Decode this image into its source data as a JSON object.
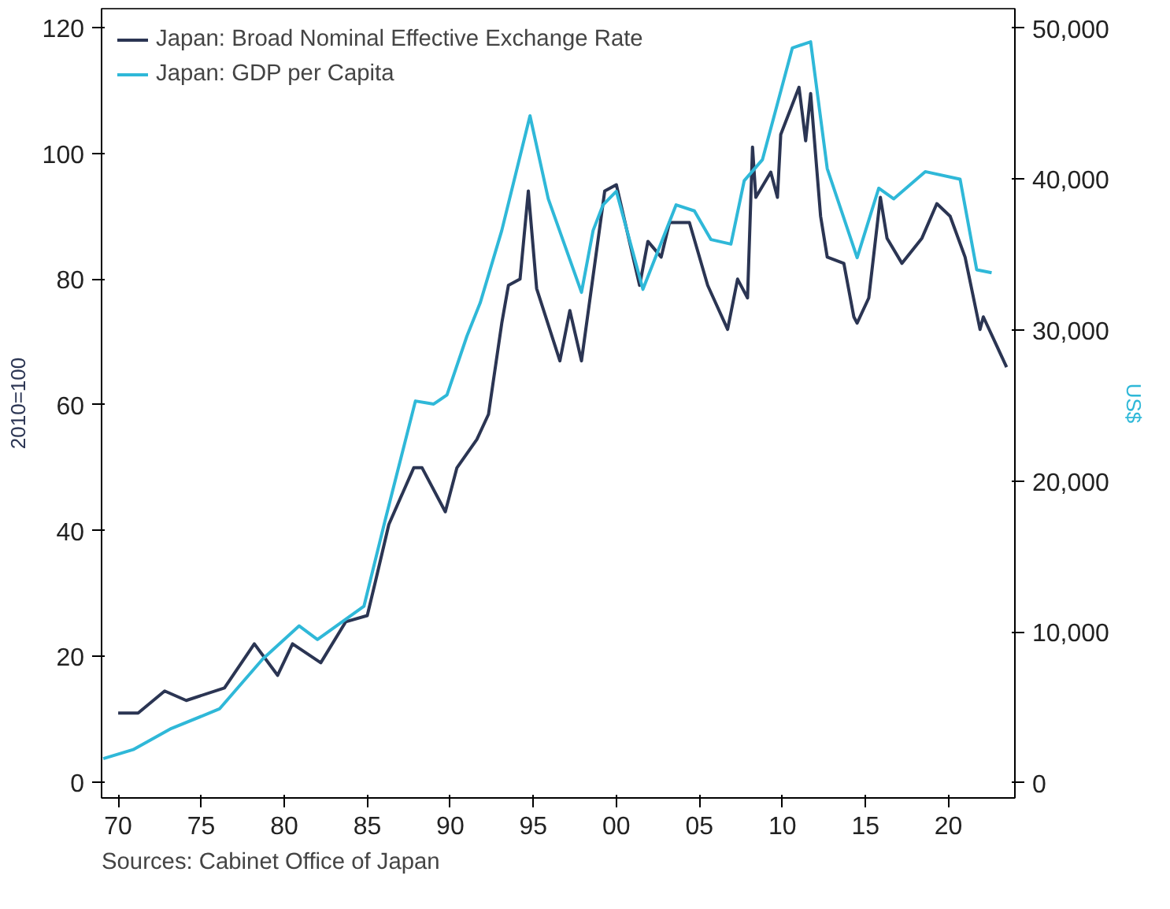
{
  "chart_data": {
    "type": "line",
    "ylabel": "2010=100",
    "y2label": "US$",
    "annotations": [
      "Sources: Cabinet Office of Japan"
    ],
    "legend": "top left",
    "grid": false,
    "xlim": [
      1969,
      2024
    ],
    "ylim": [
      -2.5,
      123
    ],
    "y2lim": [
      -1000,
      51300
    ],
    "xticks": [
      {
        "value": 1970,
        "label": "70"
      },
      {
        "value": 1975,
        "label": "75"
      },
      {
        "value": 1980,
        "label": "80"
      },
      {
        "value": 1985,
        "label": "85"
      },
      {
        "value": 1990,
        "label": "90"
      },
      {
        "value": 1995,
        "label": "95"
      },
      {
        "value": 2000,
        "label": "00"
      },
      {
        "value": 2005,
        "label": "05"
      },
      {
        "value": 2010,
        "label": "10"
      },
      {
        "value": 2015,
        "label": "15"
      },
      {
        "value": 2020,
        "label": "20"
      }
    ],
    "yticks": [
      0,
      20,
      40,
      60,
      80,
      100,
      120
    ],
    "y2ticks": [
      0,
      {
        "value": 10000,
        "label": "10,000"
      },
      {
        "value": 20000,
        "label": "20,000"
      },
      {
        "value": 30000,
        "label": "30,000"
      },
      {
        "value": 40000,
        "label": "40,000"
      },
      {
        "value": 50000,
        "label": "50,000"
      }
    ],
    "series": [
      {
        "name": "Japan: Broad Nominal Effective Exchange Rate",
        "color": "#2b3553",
        "x": [
          1970.0,
          1971.2,
          1972.8,
          1974.1,
          1976.4,
          1978.2,
          1979.6,
          1980.5,
          1982.2,
          1983.7,
          1985.0,
          1985.5,
          1986.3,
          1987.8,
          1988.3,
          1989.7,
          1990.4,
          1991.6,
          1992.3,
          1993.1,
          1993.5,
          1994.2,
          1994.7,
          1995.2,
          1996.6,
          1997.2,
          1997.9,
          1999.3,
          2000.0,
          2001.4,
          2001.9,
          2002.7,
          2003.2,
          2004.4,
          2005.5,
          2006.7,
          2007.3,
          2007.9,
          2008.2,
          2008.4,
          2009.3,
          2009.7,
          2009.9,
          2011.0,
          2011.4,
          2011.7,
          2012.3,
          2012.7,
          2013.7,
          2014.3,
          2014.5,
          2015.2,
          2015.9,
          2016.3,
          2017.2,
          2018.4,
          2019.3,
          2020.1,
          2021.0,
          2021.9,
          2022.1,
          2022.8,
          2023.5
        ],
        "values": [
          11,
          11,
          14.5,
          13,
          15,
          22,
          17,
          22,
          19,
          25.5,
          26.5,
          32,
          41,
          50,
          50,
          43,
          50,
          54.5,
          58.5,
          73,
          79,
          80,
          94,
          78.5,
          67,
          75,
          67,
          94,
          95,
          79,
          86,
          83.5,
          89,
          89,
          79,
          72,
          80,
          77,
          101,
          93,
          97,
          93,
          103,
          110.5,
          102,
          109.5,
          90,
          83.5,
          82.5,
          74,
          73,
          77,
          93,
          86.5,
          82.5,
          86.5,
          92,
          90,
          83.5,
          72,
          74,
          70,
          66
        ]
      },
      {
        "name": "Japan: GDP per Capita",
        "color": "#2fb8d8",
        "axis": "y2",
        "x": [
          1969.1,
          1970.9,
          1973.2,
          1976.1,
          1977.6,
          1978.7,
          1980.9,
          1982.0,
          1984.8,
          1986.1,
          1987.9,
          1989.0,
          1989.8,
          1991.0,
          1991.8,
          1993.1,
          1994.8,
          1995.9,
          1997.9,
          1998.6,
          1999.2,
          2000.0,
          2001.6,
          2003.6,
          2004.7,
          2005.7,
          2006.9,
          2007.7,
          2008.8,
          2010.6,
          2011.7,
          2012.7,
          2014.5,
          2015.8,
          2016.7,
          2018.6,
          2020.7,
          2021.7,
          2022.6
        ],
        "values": [
          1600,
          2200,
          3600,
          4900,
          6800,
          8200,
          10400,
          9500,
          11700,
          17500,
          25300,
          25100,
          25700,
          29600,
          31800,
          36600,
          44200,
          38700,
          32500,
          36600,
          38300,
          39200,
          32700,
          38300,
          37900,
          36000,
          35700,
          39900,
          41300,
          48700,
          49100,
          40700,
          34800,
          39400,
          38700,
          40500,
          40000,
          34000,
          33800
        ]
      }
    ]
  }
}
